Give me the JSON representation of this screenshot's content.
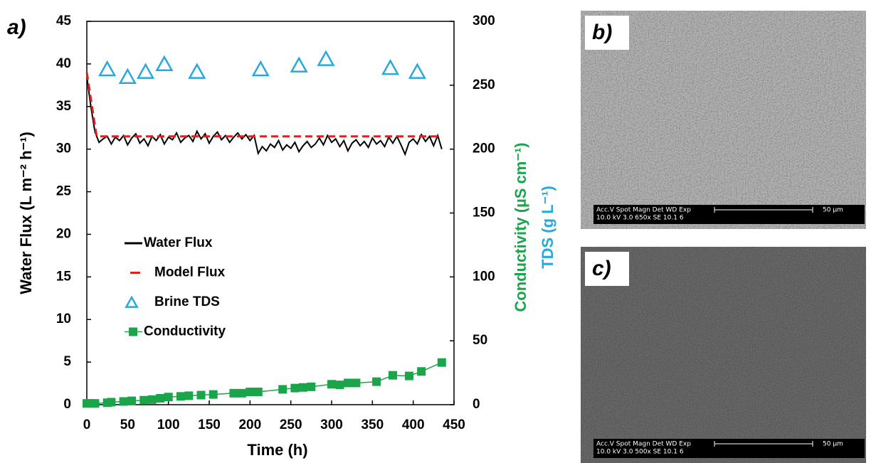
{
  "chart_data": {
    "type": "line",
    "panel_label": "a)",
    "xlabel": "Time (h)",
    "ylabel": "Water Flux (L m⁻² h⁻¹)",
    "y2labels": [
      {
        "text": "Conductivity (µS cm⁻¹)",
        "color": "#1aa54b"
      },
      {
        "text": "TDS (g L⁻¹)",
        "color": "#29a8dc"
      }
    ],
    "xlim": [
      0,
      450
    ],
    "xticks": [
      0,
      50,
      100,
      150,
      200,
      250,
      300,
      350,
      400,
      450
    ],
    "ylim": [
      0,
      45
    ],
    "yticks": [
      0,
      5,
      10,
      15,
      20,
      25,
      30,
      35,
      40,
      45
    ],
    "y2lim": [
      0,
      300
    ],
    "y2ticks": [
      0,
      50,
      100,
      150,
      200,
      250,
      300
    ],
    "legend": "center-left",
    "series": [
      {
        "name": "Water Flux",
        "color": "#000000",
        "style": "line",
        "x": [
          0,
          5,
          10,
          15,
          20,
          25,
          30,
          35,
          40,
          45,
          50,
          55,
          60,
          65,
          70,
          75,
          80,
          85,
          90,
          95,
          100,
          105,
          110,
          115,
          120,
          125,
          130,
          135,
          140,
          145,
          150,
          155,
          160,
          165,
          170,
          175,
          180,
          185,
          190,
          195,
          200,
          205,
          210,
          215,
          220,
          225,
          230,
          235,
          240,
          245,
          250,
          255,
          260,
          265,
          270,
          275,
          280,
          285,
          290,
          295,
          300,
          305,
          310,
          315,
          320,
          325,
          330,
          335,
          340,
          345,
          350,
          355,
          360,
          365,
          370,
          375,
          380,
          385,
          390,
          395,
          400,
          405,
          410,
          415,
          420,
          425,
          430,
          435
        ],
        "values": [
          38.5,
          35,
          32,
          30.8,
          31.2,
          31.5,
          30.6,
          31.4,
          31.0,
          31.6,
          30.5,
          31.3,
          31.8,
          30.7,
          31.2,
          30.4,
          31.5,
          31.0,
          31.7,
          30.6,
          31.4,
          31.1,
          31.9,
          30.8,
          31.3,
          31.6,
          30.9,
          32.1,
          31.2,
          31.8,
          30.7,
          31.5,
          32.0,
          31.1,
          31.6,
          30.8,
          31.4,
          31.9,
          31.2,
          31.7,
          31.0,
          31.6,
          29.5,
          30.3,
          29.8,
          30.6,
          30.2,
          31.0,
          29.9,
          30.5,
          30.1,
          30.8,
          29.7,
          30.4,
          30.9,
          30.2,
          30.6,
          31.3,
          30.5,
          31.6,
          30.8,
          31.2,
          30.3,
          31.0,
          29.8,
          30.7,
          31.1,
          30.4,
          30.9,
          30.2,
          31.3,
          30.6,
          31.0,
          30.3,
          31.4,
          30.7,
          31.5,
          30.5,
          29.4,
          30.8,
          31.2,
          30.6,
          31.7,
          30.9,
          31.5,
          30.4,
          31.6,
          30.0
        ]
      },
      {
        "name": "Model Flux",
        "color": "#e0201b",
        "style": "dashed",
        "x": [
          0,
          12,
          435
        ],
        "values": [
          39,
          31.5,
          31.5
        ]
      },
      {
        "name": "Brine TDS",
        "color": "#29a8dc",
        "style": "triangle",
        "axis": "y2",
        "x": [
          25,
          50,
          72,
          95,
          135,
          213,
          260,
          293,
          372,
          405
        ],
        "values": [
          262,
          256,
          260,
          266,
          260,
          262,
          265,
          270,
          263,
          260
        ]
      },
      {
        "name": "Conductivity",
        "color": "#1aa54b",
        "style": "line-square",
        "axis": "y2",
        "x": [
          0,
          5,
          10,
          25,
          30,
          45,
          55,
          70,
          80,
          90,
          100,
          115,
          125,
          140,
          155,
          180,
          190,
          200,
          210,
          240,
          255,
          265,
          275,
          300,
          310,
          320,
          330,
          355,
          375,
          395,
          410,
          435
        ],
        "values": [
          1,
          1,
          1,
          1.5,
          2,
          2.5,
          3,
          3.5,
          4,
          5,
          6,
          6.5,
          7,
          7.5,
          8,
          9,
          9,
          10,
          10,
          12,
          13,
          13.5,
          14,
          16,
          15.5,
          17,
          17,
          18,
          23,
          22.5,
          26,
          33
        ]
      }
    ]
  },
  "images": [
    {
      "label": "b)",
      "info_header": "Acc.V  Spot Magn    Det  WD  Exp",
      "info_values": "10.0 kV 3.0   650x     SE   10.1  6",
      "scale": "50 µm"
    },
    {
      "label": "c)",
      "info_header": "Acc.V  Spot Magn    Det  WD  Exp",
      "info_values": "10.0 kV 3.0   500x     SE   10.1  6",
      "scale": "50 µm"
    }
  ]
}
